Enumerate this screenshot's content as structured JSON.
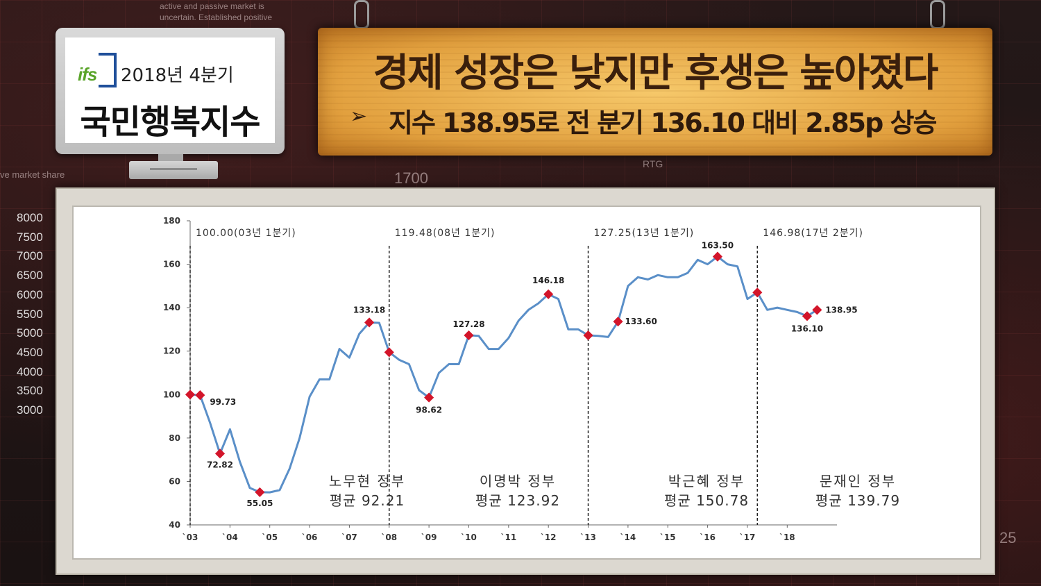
{
  "background": {
    "text_lines": [
      "active and passive market is",
      "uncertain. Established positive"
    ],
    "side_ticks": [
      "8000",
      "7500",
      "7000",
      "6500",
      "6000",
      "5500",
      "5000",
      "4500",
      "4000",
      "3500",
      "3000"
    ],
    "label_1700": "1700",
    "label_rtg": "RTG",
    "label_25": "25",
    "label_share": "ve market share"
  },
  "badge": {
    "logo": "ifs",
    "quarter": "2018년 4분기",
    "name": "국민행복지수"
  },
  "banner": {
    "title": "경제 성장은 낮지만 후생은 높아졌다",
    "arrow": "➢",
    "subtitle": "지수 138.95로 전 분기 136.10 대비 2.85p 상승"
  },
  "chart_data": {
    "type": "line",
    "ylim": [
      40,
      180
    ],
    "yticks": [
      40,
      60,
      80,
      100,
      120,
      140,
      160,
      180
    ],
    "xlim": [
      2003,
      2019.25
    ],
    "xticks": [
      {
        "label": "`03",
        "x": 2003
      },
      {
        "label": "`04",
        "x": 2004
      },
      {
        "label": "`05",
        "x": 2005
      },
      {
        "label": "`06",
        "x": 2006
      },
      {
        "label": "`07",
        "x": 2007
      },
      {
        "label": "`08",
        "x": 2008
      },
      {
        "label": "`09",
        "x": 2009
      },
      {
        "label": "`10",
        "x": 2010
      },
      {
        "label": "`11",
        "x": 2011
      },
      {
        "label": "`12",
        "x": 2012
      },
      {
        "label": "`13",
        "x": 2013
      },
      {
        "label": "`14",
        "x": 2014
      },
      {
        "label": "`15",
        "x": 2015
      },
      {
        "label": "`16",
        "x": 2016
      },
      {
        "label": "`17",
        "x": 2017
      },
      {
        "label": "`18",
        "x": 2018
      }
    ],
    "series": [
      {
        "color": "#5a8fc8",
        "x": [
          2003.0,
          2003.25,
          2003.5,
          2003.75,
          2004.0,
          2004.25,
          2004.5,
          2004.75,
          2005.0,
          2005.25,
          2005.5,
          2005.75,
          2006.0,
          2006.25,
          2006.5,
          2006.75,
          2007.0,
          2007.25,
          2007.5,
          2007.75,
          2008.0,
          2008.25,
          2008.5,
          2008.75,
          2009.0,
          2009.25,
          2009.5,
          2009.75,
          2010.0,
          2010.25,
          2010.5,
          2010.75,
          2011.0,
          2011.25,
          2011.5,
          2011.75,
          2012.0,
          2012.25,
          2012.5,
          2012.75,
          2013.0,
          2013.25,
          2013.5,
          2013.75,
          2014.0,
          2014.25,
          2014.5,
          2014.75,
          2015.0,
          2015.25,
          2015.5,
          2015.75,
          2016.0,
          2016.25,
          2016.5,
          2016.75,
          2017.0,
          2017.25,
          2017.5,
          2017.75,
          2018.0,
          2018.25,
          2018.5,
          2018.75
        ],
        "y": [
          100.0,
          99.73,
          87.0,
          72.82,
          84.0,
          69.0,
          57.0,
          55.05,
          55.0,
          56.0,
          66.0,
          80.0,
          99.0,
          107.0,
          107.0,
          121.0,
          117.0,
          128.0,
          133.18,
          133.0,
          119.48,
          116.0,
          114.0,
          102.0,
          98.62,
          110.0,
          114.0,
          114.0,
          127.28,
          127.0,
          121.0,
          121.0,
          126.0,
          134.0,
          139.0,
          142.0,
          146.18,
          144.0,
          130.0,
          130.0,
          127.25,
          127.0,
          126.5,
          133.6,
          150.0,
          154.0,
          153.0,
          155.0,
          154.0,
          154.0,
          156.0,
          162.0,
          160.0,
          163.5,
          160.0,
          159.0,
          144.0,
          146.98,
          139.0,
          140.0,
          139.0,
          138.0,
          136.1,
          138.95
        ]
      }
    ],
    "highlights": [
      {
        "x": 2003.0,
        "y": 100.0,
        "label": ""
      },
      {
        "x": 2003.25,
        "y": 99.73,
        "label": "99.73"
      },
      {
        "x": 2003.75,
        "y": 72.82,
        "label": "72.82"
      },
      {
        "x": 2004.75,
        "y": 55.05,
        "label": "55.05"
      },
      {
        "x": 2007.5,
        "y": 133.18,
        "label": "133.18"
      },
      {
        "x": 2008.0,
        "y": 119.48,
        "label": ""
      },
      {
        "x": 2009.0,
        "y": 98.62,
        "label": "98.62"
      },
      {
        "x": 2010.0,
        "y": 127.28,
        "label": "127.28"
      },
      {
        "x": 2012.0,
        "y": 146.18,
        "label": "146.18"
      },
      {
        "x": 2013.0,
        "y": 127.25,
        "label": ""
      },
      {
        "x": 2013.75,
        "y": 133.6,
        "label": "133.60"
      },
      {
        "x": 2016.25,
        "y": 163.5,
        "label": "163.50"
      },
      {
        "x": 2017.25,
        "y": 146.98,
        "label": ""
      },
      {
        "x": 2018.5,
        "y": 136.1,
        "label": "136.10"
      },
      {
        "x": 2018.75,
        "y": 138.95,
        "label": "138.95"
      }
    ],
    "marker_color": "#d3152a",
    "dividers": [
      {
        "x": 2003.0,
        "label": "100.00(03년 1분기)"
      },
      {
        "x": 2008.0,
        "label": "119.48(08년 1분기)"
      },
      {
        "x": 2013.0,
        "label": "127.25(13년 1분기)"
      },
      {
        "x": 2017.25,
        "label": "146.98(17년 2분기)"
      }
    ],
    "eras": [
      {
        "name": "노무현 정부",
        "avg": "평균 92.21"
      },
      {
        "name": "이명박 정부",
        "avg": "평균 123.92"
      },
      {
        "name": "박근혜 정부",
        "avg": "평균 150.78"
      },
      {
        "name": "문재인 정부",
        "avg": "평균 139.79"
      }
    ]
  }
}
